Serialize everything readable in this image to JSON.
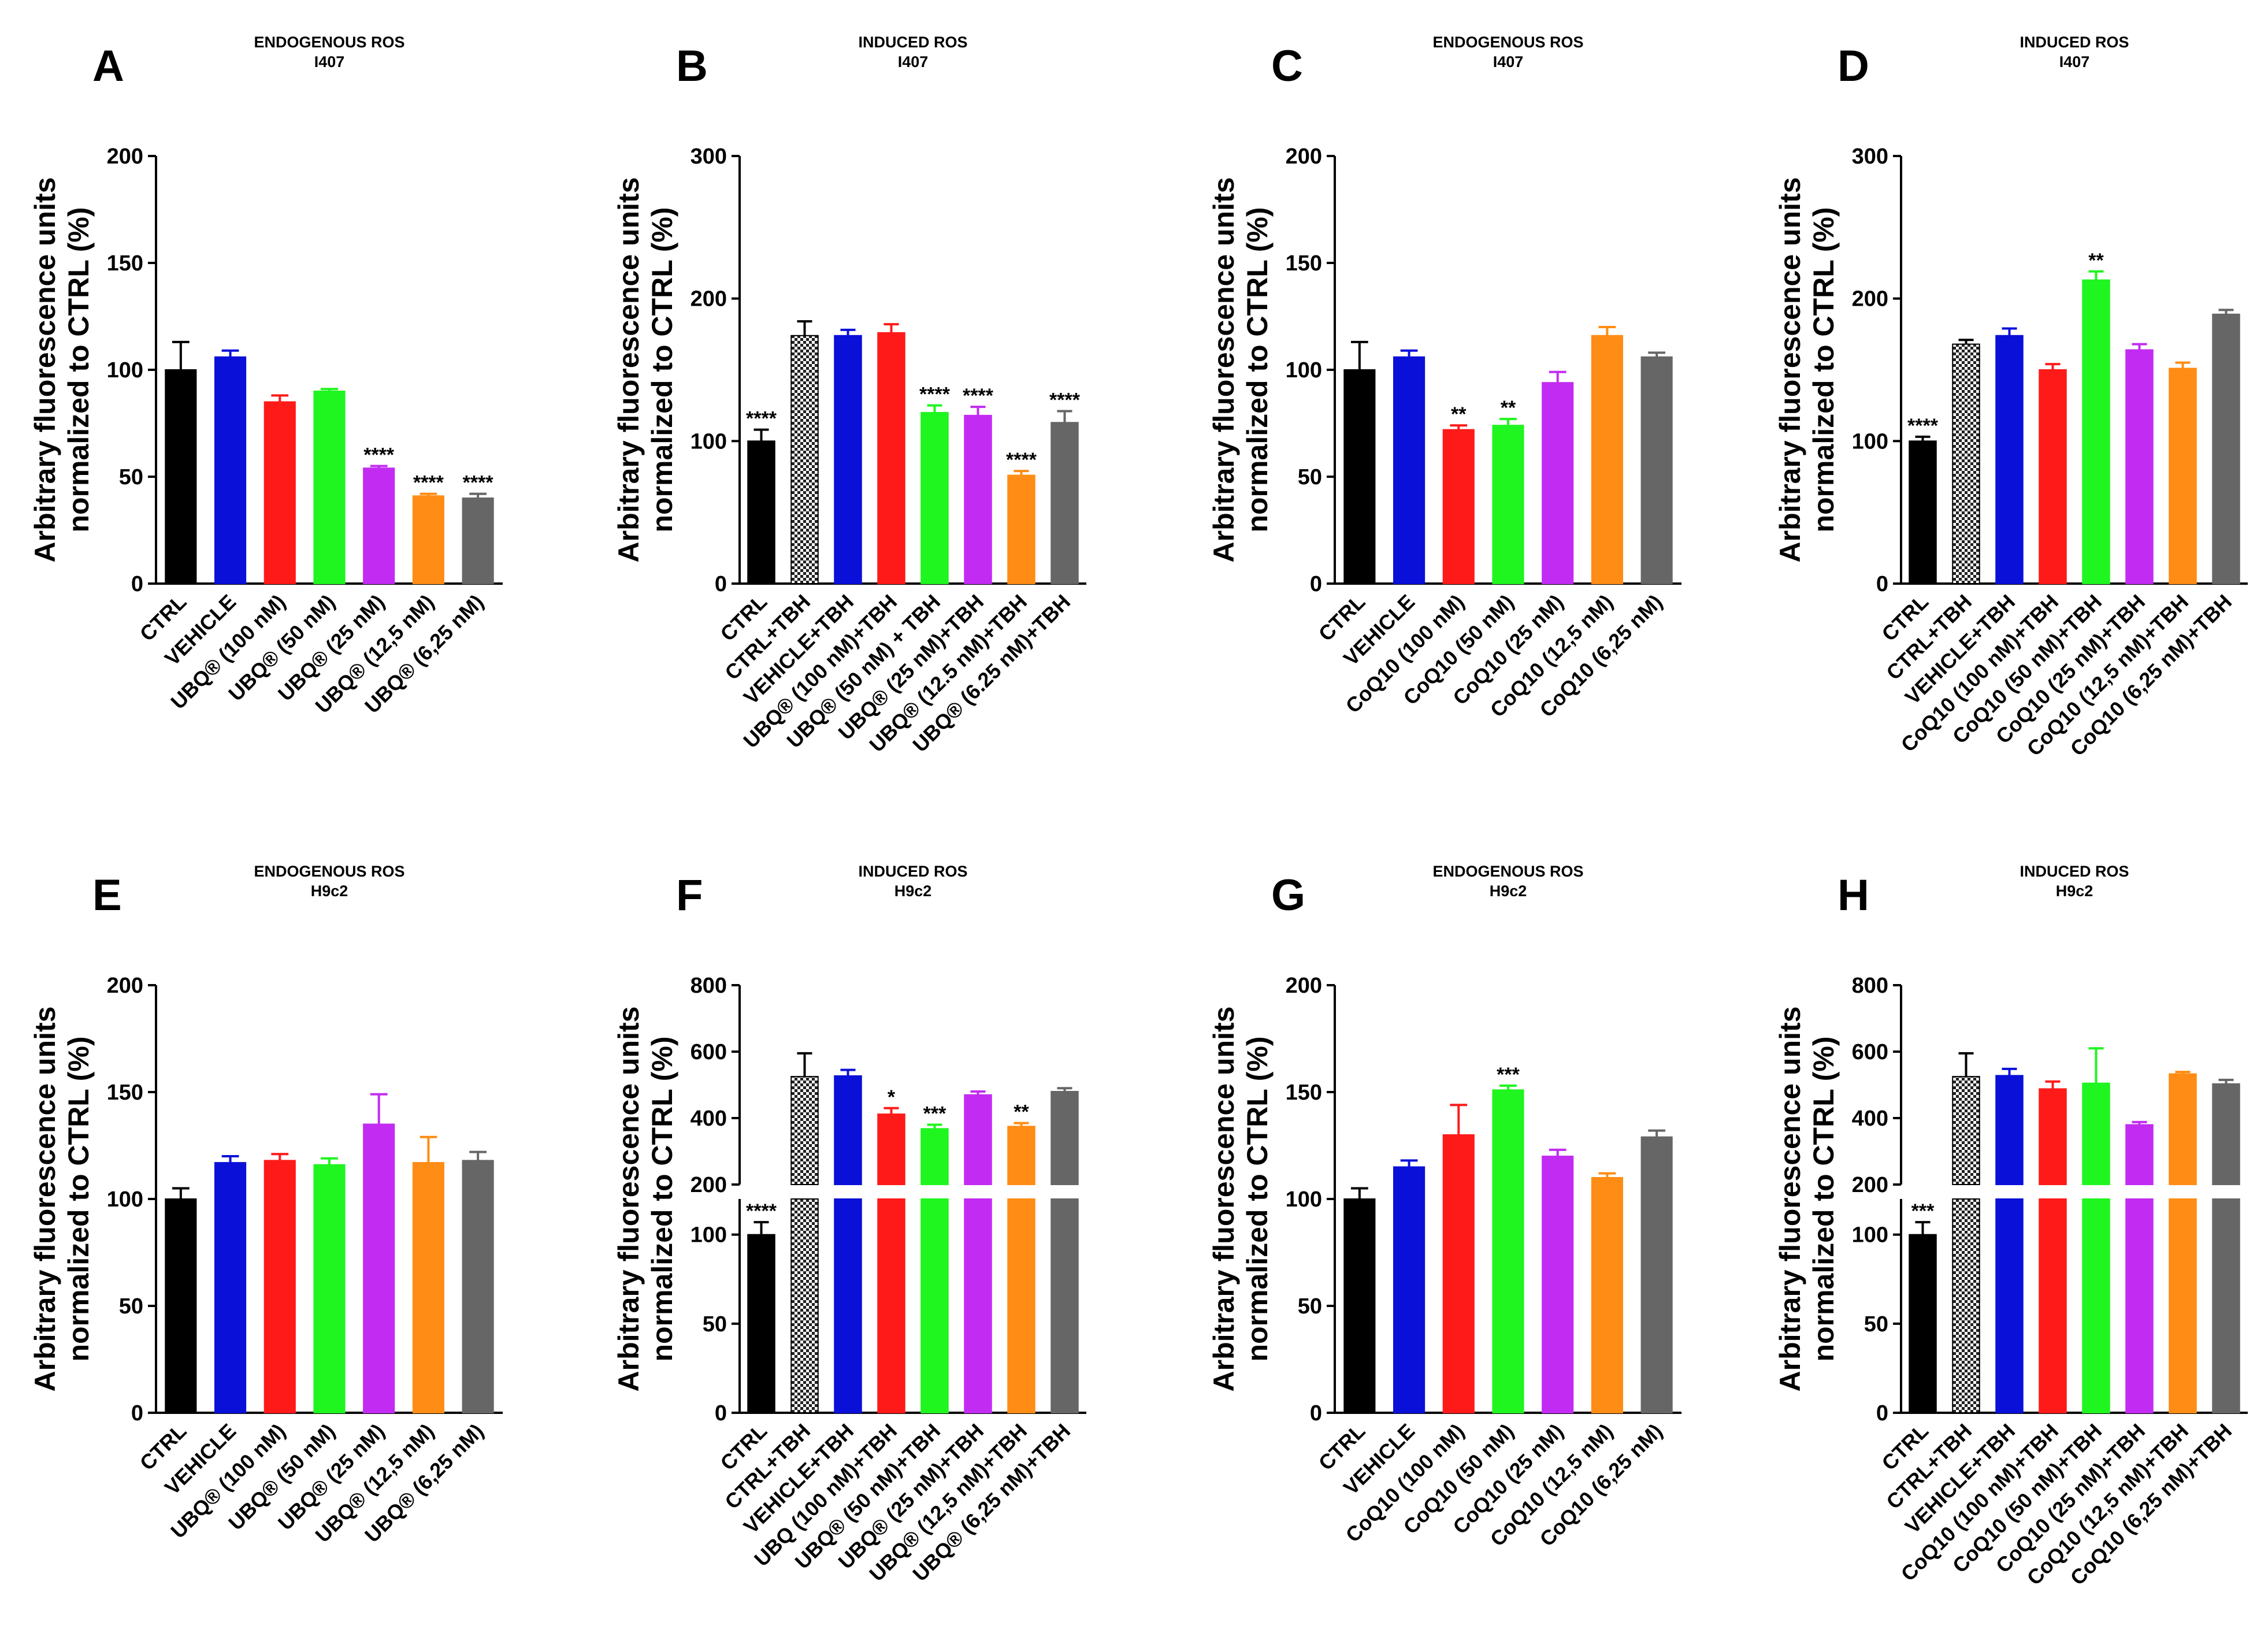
{
  "colors": {
    "black": "#000000",
    "blue": "#0a10d8",
    "red": "#ff1a1a",
    "green": "#1ff51f",
    "purple": "#c22cf2",
    "orange": "#ff8c14",
    "gray": "#666666",
    "axis": "#000000"
  },
  "chart_data": [
    {
      "panel_letter": "A",
      "type": "bar",
      "title": "ENDOGENOUS ROS",
      "subtitle": "I407",
      "ylabel": "Arbitrary fluorescence units",
      "ylabel2": "normalized to CTRL (%)",
      "ylim": [
        0,
        200
      ],
      "yticks": [
        0,
        50,
        100,
        150,
        200
      ],
      "categories": [
        "CTRL",
        "VEHICLE",
        "UBQ® (100 nM)",
        "UBQ® (50 nM)",
        "UBQ® (25 nM)",
        "UBQ® (12,5 nM)",
        "UBQ® (6,25 nM)"
      ],
      "values": [
        100,
        106,
        85,
        90,
        54,
        41,
        40
      ],
      "errors": [
        13,
        3,
        3,
        1,
        1,
        1,
        2
      ],
      "fills": [
        "black",
        "blue",
        "red",
        "green",
        "purple",
        "orange",
        "gray"
      ],
      "significance": [
        "",
        "",
        "",
        "",
        "****",
        "****",
        "****"
      ]
    },
    {
      "panel_letter": "B",
      "type": "bar",
      "title": "INDUCED ROS",
      "subtitle": "I407",
      "ylabel": "Arbitrary fluorescence units",
      "ylabel2": "normalized to CTRL (%)",
      "ylim": [
        0,
        300
      ],
      "yticks": [
        0,
        100,
        200,
        300
      ],
      "categories": [
        "CTRL",
        "CTRL+TBH",
        "VEHICLE+TBH",
        "UBQ® (100 nM)+TBH",
        "UBQ® (50 nM) + TBH",
        "UBQ® (25 nM)+TBH",
        "UBQ® (12.5 nM)+TBH",
        "UBQ® (6.25 nM)+TBH"
      ],
      "values": [
        100,
        174,
        174,
        176,
        120,
        118,
        76,
        113
      ],
      "errors": [
        8,
        10,
        4,
        6,
        5,
        6,
        3,
        8
      ],
      "fills": [
        "black",
        "pattern",
        "blue",
        "red",
        "green",
        "purple",
        "orange",
        "gray"
      ],
      "significance": [
        "****",
        "",
        "",
        "",
        "****",
        "****",
        "****",
        "****"
      ]
    },
    {
      "panel_letter": "C",
      "type": "bar",
      "title": "ENDOGENOUS ROS",
      "subtitle": "I407",
      "ylabel": "Arbitrary fluorescence units",
      "ylabel2": "normalized to CTRL (%)",
      "ylim": [
        0,
        200
      ],
      "yticks": [
        0,
        50,
        100,
        150,
        200
      ],
      "categories": [
        "CTRL",
        "VEHICLE",
        "CoQ10 (100 nM)",
        "CoQ10 (50 nM)",
        "CoQ10 (25 nM)",
        "CoQ10 (12,5 nM)",
        "CoQ10 (6,25 nM)"
      ],
      "values": [
        100,
        106,
        72,
        74,
        94,
        116,
        106
      ],
      "errors": [
        13,
        3,
        2,
        3,
        5,
        4,
        2
      ],
      "fills": [
        "black",
        "blue",
        "red",
        "green",
        "purple",
        "orange",
        "gray"
      ],
      "significance": [
        "",
        "",
        "**",
        "**",
        "",
        "",
        ""
      ]
    },
    {
      "panel_letter": "D",
      "type": "bar",
      "title": "INDUCED ROS",
      "subtitle": "I407",
      "ylabel": "Arbitrary fluorescence units",
      "ylabel2": "normalized to CTRL (%)",
      "ylim": [
        0,
        300
      ],
      "yticks": [
        0,
        100,
        200,
        300
      ],
      "categories": [
        "CTRL",
        "CTRL+TBH",
        "VEHICLE+TBH",
        "CoQ10 (100 nM)+TBH",
        "CoQ10 (50 nM)+TBH",
        "CoQ10 (25 nM)+TBH",
        "CoQ10 (12,5 nM)+TBH",
        "CoQ10 (6,25 nM)+TBH"
      ],
      "values": [
        100,
        168,
        174,
        150,
        213,
        164,
        151,
        189
      ],
      "errors": [
        3,
        3,
        5,
        4,
        6,
        4,
        4,
        3
      ],
      "fills": [
        "black",
        "pattern",
        "blue",
        "red",
        "green",
        "purple",
        "orange",
        "gray"
      ],
      "significance": [
        "****",
        "",
        "",
        "",
        "**",
        "",
        "",
        ""
      ]
    },
    {
      "panel_letter": "E",
      "type": "bar",
      "title": "ENDOGENOUS ROS",
      "subtitle": "H9c2",
      "ylabel": "Arbitrary fluorescence units",
      "ylabel2": "normalized to CTRL (%)",
      "ylim": [
        0,
        200
      ],
      "yticks": [
        0,
        50,
        100,
        150,
        200
      ],
      "categories": [
        "CTRL",
        "VEHICLE",
        "UBQ® (100 nM)",
        "UBQ® (50 nM)",
        "UBQ® (25 nM)",
        "UBQ® (12,5 nM)",
        "UBQ® (6,25 nM)"
      ],
      "values": [
        100,
        117,
        118,
        116,
        135,
        117,
        118
      ],
      "errors": [
        5,
        3,
        3,
        3,
        14,
        12,
        4
      ],
      "fills": [
        "black",
        "blue",
        "red",
        "green",
        "purple",
        "orange",
        "gray"
      ],
      "significance": [
        "",
        "",
        "",
        "",
        "",
        "",
        ""
      ]
    },
    {
      "panel_letter": "F",
      "type": "bar",
      "broken_axis": true,
      "title": "INDUCED ROS",
      "subtitle": "H9c2",
      "ylabel": "Arbitrary fluorescence units",
      "ylabel2": "normalized to CTRL (%)",
      "lower_yticks": [
        0,
        50,
        100
      ],
      "upper_yticks": [
        200,
        400,
        600,
        800
      ],
      "categories": [
        "CTRL",
        "CTRL+TBH",
        "VEHICLE+TBH",
        "UBQ (100 nM)+TBH",
        "UBQ® (50 nM)+TBH",
        "UBQ® (25 nM)+TBH",
        "UBQ® (12,5 nM)+TBH",
        "UBQ® (6,25 nM)+TBH"
      ],
      "values": [
        100,
        525,
        527,
        412,
        368,
        470,
        375,
        480
      ],
      "errors": [
        7,
        70,
        18,
        18,
        12,
        10,
        10,
        10
      ],
      "fills": [
        "black",
        "pattern",
        "blue",
        "red",
        "green",
        "purple",
        "orange",
        "gray"
      ],
      "significance": [
        "****",
        "",
        "",
        "*",
        "***",
        "",
        "**",
        ""
      ]
    },
    {
      "panel_letter": "G",
      "type": "bar",
      "title": "ENDOGENOUS ROS",
      "subtitle": "H9c2",
      "ylabel": "Arbitrary fluorescence units",
      "ylabel2": "normalized to CTRL (%)",
      "ylim": [
        0,
        200
      ],
      "yticks": [
        0,
        50,
        100,
        150,
        200
      ],
      "categories": [
        "CTRL",
        "VEHICLE",
        "CoQ10 (100 nM)",
        "CoQ10 (50 nM)",
        "CoQ10 (25 nM)",
        "CoQ10 (12,5 nM)",
        "CoQ10 (6,25 nM)"
      ],
      "values": [
        100,
        115,
        130,
        151,
        120,
        110,
        129
      ],
      "errors": [
        5,
        3,
        14,
        2,
        3,
        2,
        3
      ],
      "fills": [
        "black",
        "blue",
        "red",
        "green",
        "purple",
        "orange",
        "gray"
      ],
      "significance": [
        "",
        "",
        "",
        "***",
        "",
        "",
        ""
      ]
    },
    {
      "panel_letter": "H",
      "type": "bar",
      "broken_axis": true,
      "title": "INDUCED ROS",
      "subtitle": "H9c2",
      "ylabel": "Arbitrary fluorescence units",
      "ylabel2": "normalized to CTRL (%)",
      "lower_yticks": [
        0,
        50,
        100
      ],
      "upper_yticks": [
        200,
        400,
        600,
        800
      ],
      "categories": [
        "CTRL",
        "CTRL+TBH",
        "VEHICLE+TBH",
        "CoQ10 (100 nM)+TBH",
        "CoQ10 (50 nM)+TBH",
        "CoQ10 (25 nM)+TBH",
        "CoQ10 (12,5 nM)+TBH",
        "CoQ10 (6,25 nM)+TBH"
      ],
      "values": [
        100,
        525,
        528,
        488,
        505,
        380,
        533,
        503
      ],
      "errors": [
        7,
        70,
        20,
        22,
        105,
        8,
        6,
        12
      ],
      "fills": [
        "black",
        "pattern",
        "blue",
        "red",
        "green",
        "purple",
        "orange",
        "gray"
      ],
      "significance": [
        "***",
        "",
        "",
        "",
        "",
        "",
        "",
        ""
      ]
    }
  ]
}
